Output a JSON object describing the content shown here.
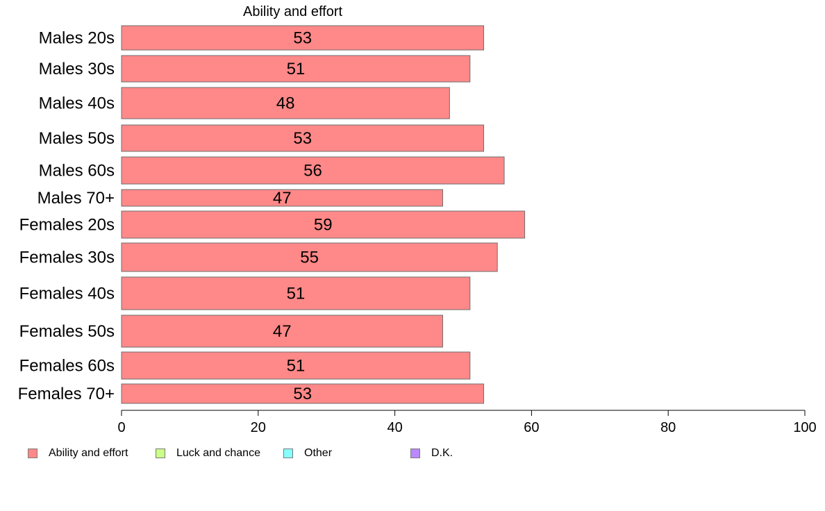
{
  "chart_data": {
    "type": "bar",
    "orientation": "horizontal",
    "stacked": true,
    "title": "Ability and effort",
    "categories": [
      "Males 20s",
      "Males 30s",
      "Males 40s",
      "Males 50s",
      "Males 60s",
      "Males 70+",
      "Females 20s",
      "Females 30s",
      "Females 40s",
      "Females 50s",
      "Females 60s",
      "Females 70+"
    ],
    "series": [
      {
        "name": "Ability and effort",
        "color": "#ff8888",
        "values": [
          53,
          51,
          48,
          53,
          56,
          47,
          59,
          55,
          51,
          47,
          51,
          53
        ]
      }
    ],
    "xlim": [
      0,
      100
    ],
    "xticks": [
      0,
      20,
      40,
      60,
      80,
      100
    ],
    "grid": false,
    "legend_position": "bottom",
    "legend": [
      {
        "label": "Ability and effort",
        "color": "#ff8888"
      },
      {
        "label": "Luck and chance",
        "color": "#ccff88"
      },
      {
        "label": "Other",
        "color": "#88ffff"
      },
      {
        "label": "D.K.",
        "color": "#bb88ff"
      }
    ]
  }
}
